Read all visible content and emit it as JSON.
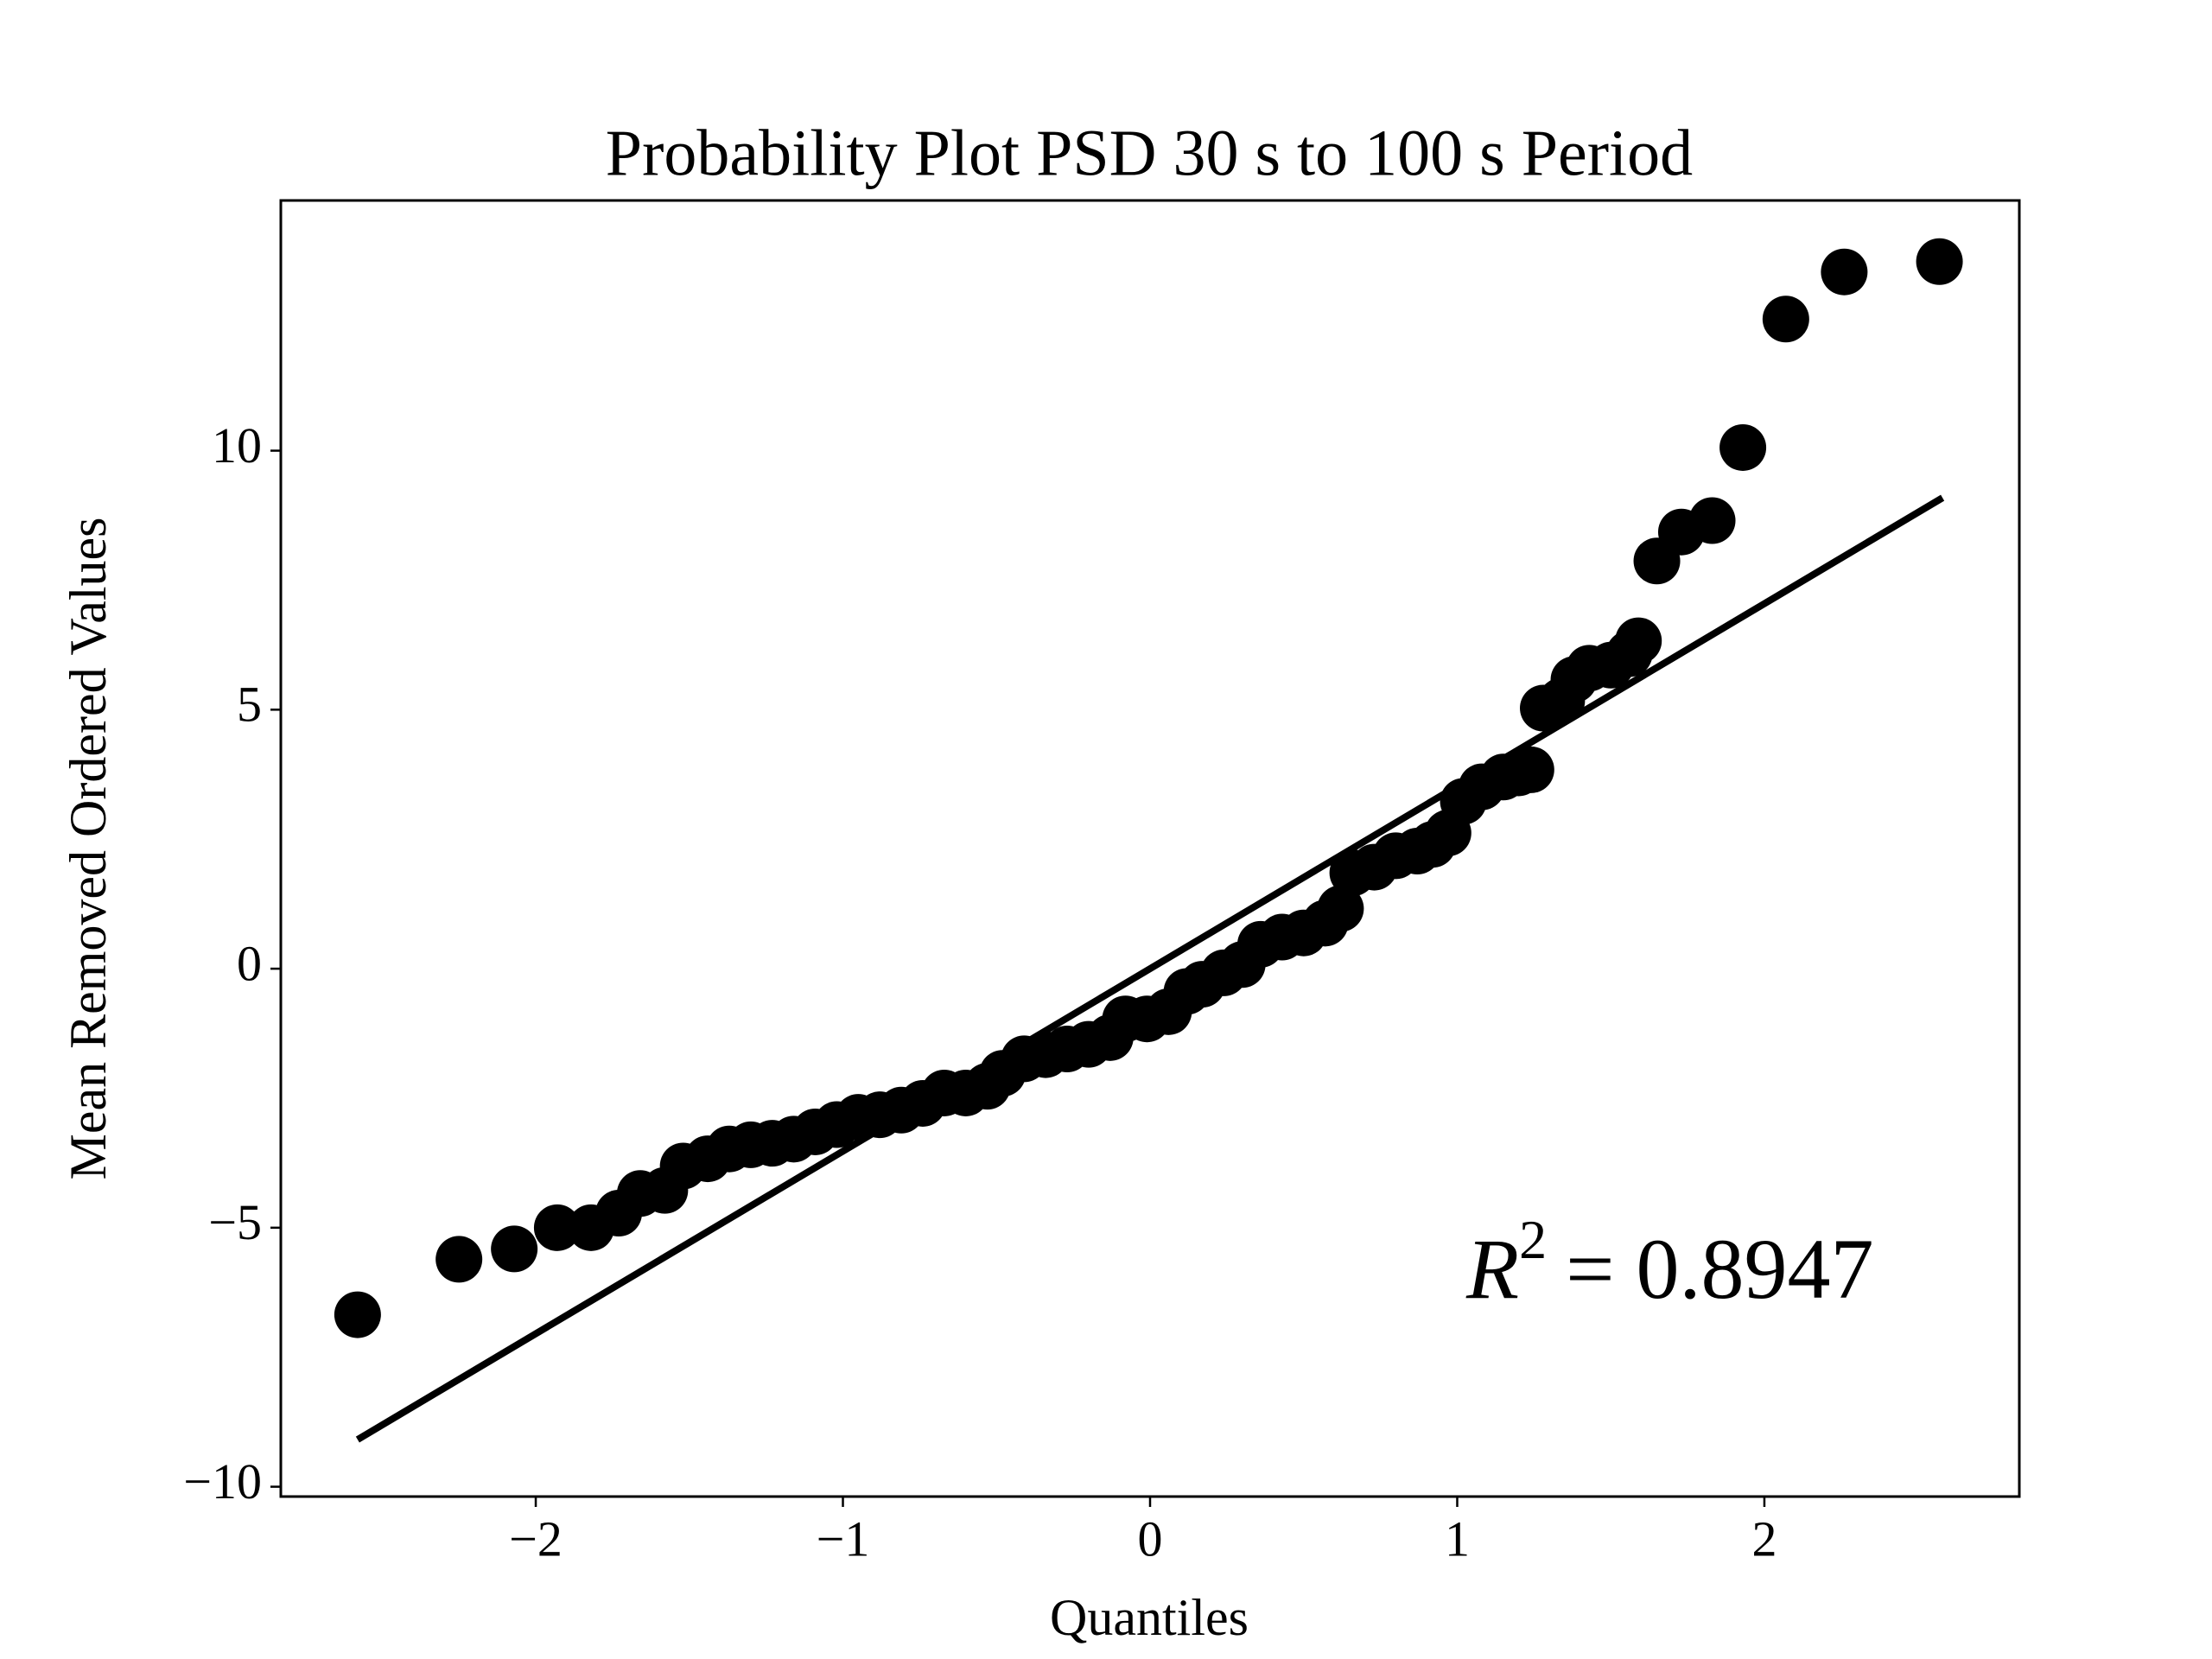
{
  "chart_data": {
    "type": "probplot",
    "title": "Probability Plot PSD 30 s to 100 s Period",
    "x_label": "Quantiles",
    "y_label": "Mean Removed Ordered Values",
    "annotation": {
      "base": "R",
      "sup": "2",
      "text": "= 0.8947"
    },
    "color": "#000000",
    "points": {
      "x": [
        -2.58,
        -2.25,
        -2.07,
        -1.93,
        -1.82,
        -1.73,
        -1.66,
        -1.58,
        -1.52,
        -1.44,
        -1.37,
        -1.3,
        -1.23,
        -1.16,
        -1.09,
        -1.02,
        -0.95,
        -0.88,
        -0.81,
        -0.74,
        -0.67,
        -0.6,
        -0.53,
        -0.48,
        -0.41,
        -0.34,
        -0.27,
        -0.2,
        -0.13,
        -0.08,
        -0.01,
        0.06,
        0.12,
        0.17,
        0.24,
        0.3,
        0.36,
        0.43,
        0.5,
        0.57,
        0.62,
        0.66,
        0.73,
        0.8,
        0.87,
        0.92,
        0.97,
        1.02,
        1.08,
        1.15,
        1.2,
        1.24,
        1.28,
        1.34,
        1.38,
        1.43,
        1.5,
        1.56,
        1.59,
        1.65,
        1.73,
        1.83,
        1.93,
        2.07,
        2.26,
        2.57
      ],
      "y": [
        -6.68,
        -5.61,
        -5.41,
        -5.0,
        -5.0,
        -4.72,
        -4.34,
        -4.28,
        -3.81,
        -3.67,
        -3.48,
        -3.4,
        -3.37,
        -3.29,
        -3.15,
        -3.01,
        -2.87,
        -2.82,
        -2.73,
        -2.6,
        -2.4,
        -2.4,
        -2.27,
        -2.02,
        -1.74,
        -1.66,
        -1.55,
        -1.46,
        -1.33,
        -0.97,
        -0.97,
        -0.83,
        -0.44,
        -0.3,
        -0.08,
        0.08,
        0.47,
        0.61,
        0.69,
        0.88,
        1.16,
        1.85,
        1.96,
        2.18,
        2.27,
        2.4,
        2.62,
        3.23,
        3.51,
        3.7,
        3.78,
        3.84,
        5.03,
        5.17,
        5.58,
        5.8,
        5.86,
        6.08,
        6.33,
        7.87,
        8.43,
        8.65,
        10.06,
        12.54,
        13.45,
        13.65
      ]
    },
    "fit_line": {
      "x": [
        -2.58,
        2.58
      ],
      "y": [
        -9.09,
        9.09
      ]
    },
    "xlim": [
      -2.83,
      2.83
    ],
    "ylim": [
      -10.19,
      14.83
    ],
    "xticks": [
      {
        "value": -2,
        "label": "−2"
      },
      {
        "value": -1,
        "label": "−1"
      },
      0,
      1,
      2
    ],
    "yticks": [
      {
        "value": -10,
        "label": "−10"
      },
      {
        "value": -5,
        "label": "−5"
      },
      0,
      5,
      10
    ]
  }
}
